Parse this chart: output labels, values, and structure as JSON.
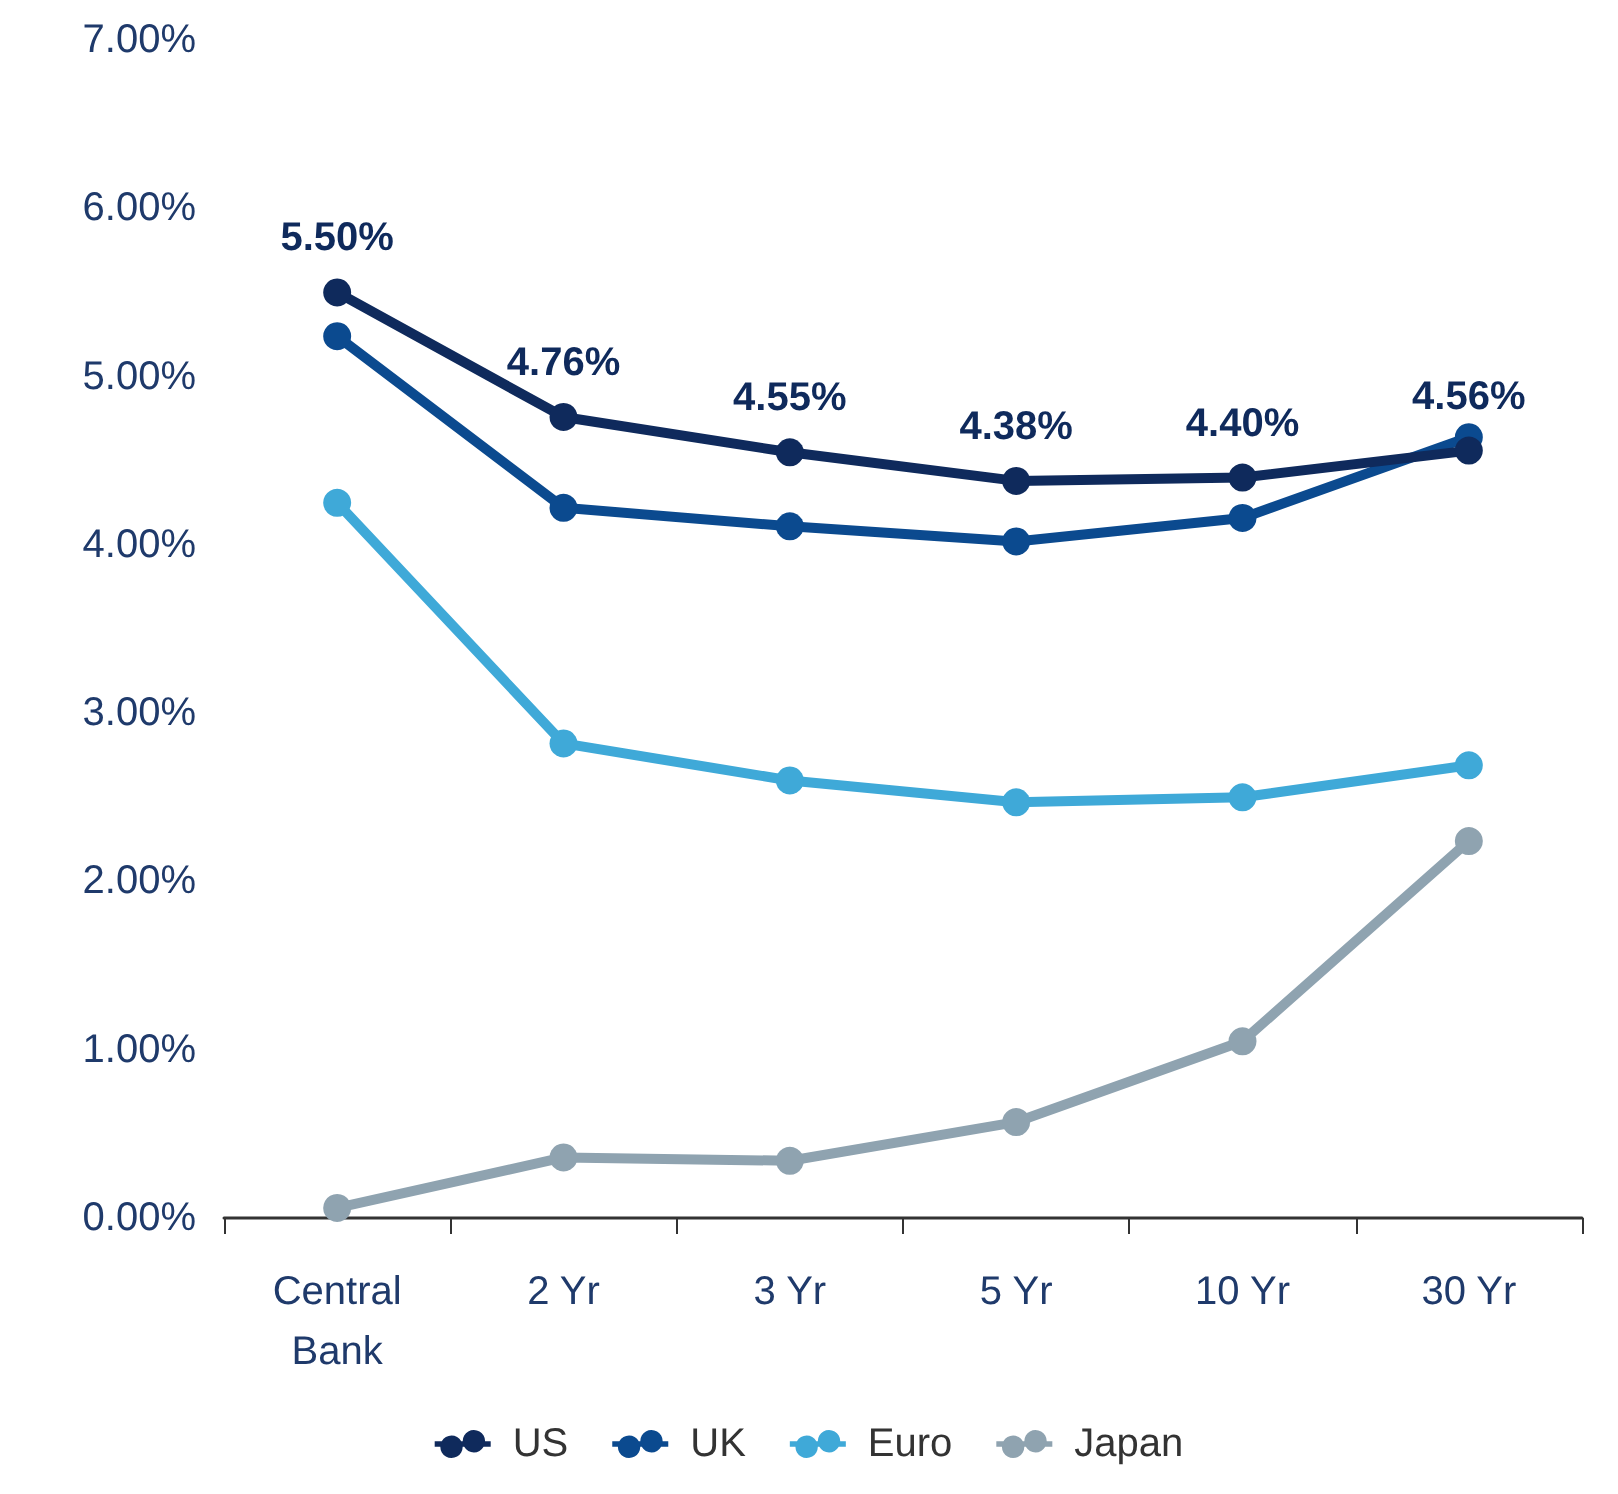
{
  "chart_data": {
    "type": "line",
    "categories": [
      "Central\nBank",
      "2 Yr",
      "3 Yr",
      "5 Yr",
      "10 Yr",
      "30 Yr"
    ],
    "series": [
      {
        "name": "US",
        "color": "#0f2a5c",
        "values": [
          5.5,
          4.76,
          4.55,
          4.38,
          4.4,
          4.56
        ],
        "value_labels": [
          "5.50%",
          "4.76%",
          "4.55%",
          "4.38%",
          "4.40%",
          "4.56%"
        ]
      },
      {
        "name": "UK",
        "color": "#0b4a8f",
        "values": [
          5.24,
          4.22,
          4.11,
          4.02,
          4.16,
          4.64
        ]
      },
      {
        "name": "Euro",
        "color": "#3fa9d8",
        "values": [
          4.25,
          2.82,
          2.6,
          2.47,
          2.5,
          2.69
        ]
      },
      {
        "name": "Japan",
        "color": "#8fa3b0",
        "values": [
          0.06,
          0.36,
          0.34,
          0.57,
          1.05,
          2.24
        ]
      }
    ],
    "ylim": [
      0,
      7
    ],
    "yticks": [
      {
        "value": 0,
        "label": "0.00%"
      },
      {
        "value": 1,
        "label": "1.00%"
      },
      {
        "value": 2,
        "label": "2.00%"
      },
      {
        "value": 3,
        "label": "3.00%"
      },
      {
        "value": 4,
        "label": "4.00%"
      },
      {
        "value": 5,
        "label": "5.00%"
      },
      {
        "value": 6,
        "label": "6.00%"
      },
      {
        "value": 7,
        "label": "7.00%"
      }
    ],
    "grid": false,
    "legend": "bottom",
    "marker": "circle",
    "line_style": "solid"
  }
}
